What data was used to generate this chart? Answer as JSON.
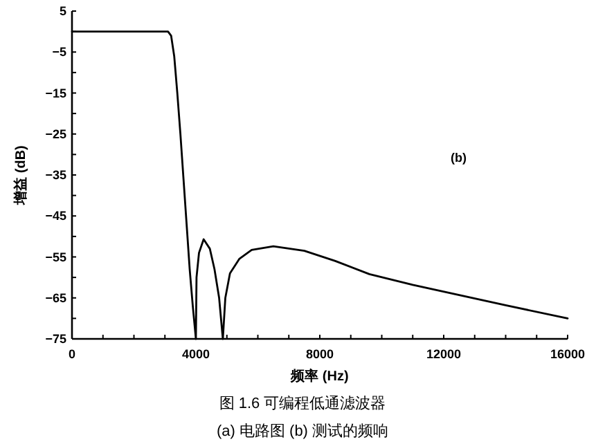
{
  "chart_data": {
    "type": "line",
    "xlabel": "频率 (Hz)",
    "ylabel": "增益 (dB)",
    "x": [
      0,
      1000,
      2000,
      3000,
      3100,
      3200,
      3300,
      3400,
      3500,
      3600,
      3700,
      3800,
      3900,
      4000,
      4020,
      4100,
      4250,
      4450,
      4600,
      4750,
      4870,
      4950,
      5100,
      5400,
      5800,
      6500,
      7500,
      8500,
      9600,
      11000,
      12500,
      14000,
      16000
    ],
    "series": [
      {
        "color": "#000000",
        "values": [
          0,
          0,
          0,
          0,
          0,
          -1,
          -6,
          -15,
          -25,
          -36,
          -47,
          -58,
          -67,
          -75,
          -60,
          -54,
          -50.7,
          -53,
          -58,
          -65,
          -75,
          -65,
          -59,
          -55.5,
          -53.3,
          -52.4,
          -53.5,
          -56,
          -59.2,
          -61.8,
          -64.3,
          -66.8,
          -70
        ]
      }
    ],
    "xlim": [
      0,
      16000
    ],
    "ylim": [
      -75,
      5
    ],
    "xticks": [
      0,
      {
        "value": 1000,
        "label": null
      },
      {
        "value": 2000,
        "label": null
      },
      {
        "value": 3000,
        "label": null
      },
      4000,
      {
        "value": 5000,
        "label": null
      },
      {
        "value": 6000,
        "label": null
      },
      {
        "value": 7000,
        "label": null
      },
      8000,
      {
        "value": 9000,
        "label": null
      },
      {
        "value": 10000,
        "label": null
      },
      {
        "value": 11000,
        "label": null
      },
      12000,
      {
        "value": 13000,
        "label": null
      },
      {
        "value": 14000,
        "label": null
      },
      {
        "value": 15000,
        "label": null
      },
      16000
    ],
    "yticks": [
      5,
      {
        "value": 0,
        "label": null
      },
      -5,
      {
        "value": -10,
        "label": null
      },
      -15,
      {
        "value": -20,
        "label": null
      },
      -25,
      {
        "value": -30,
        "label": null
      },
      -35,
      {
        "value": -40,
        "label": null
      },
      -45,
      {
        "value": -50,
        "label": null
      },
      -55,
      {
        "value": -60,
        "label": null
      },
      -65,
      {
        "value": -70,
        "label": null
      },
      -75
    ],
    "annotations": [
      "(b)",
      "图 1.6 可编程低通滤波器",
      "(a) 电路图 (b) 测试的频响"
    ]
  }
}
